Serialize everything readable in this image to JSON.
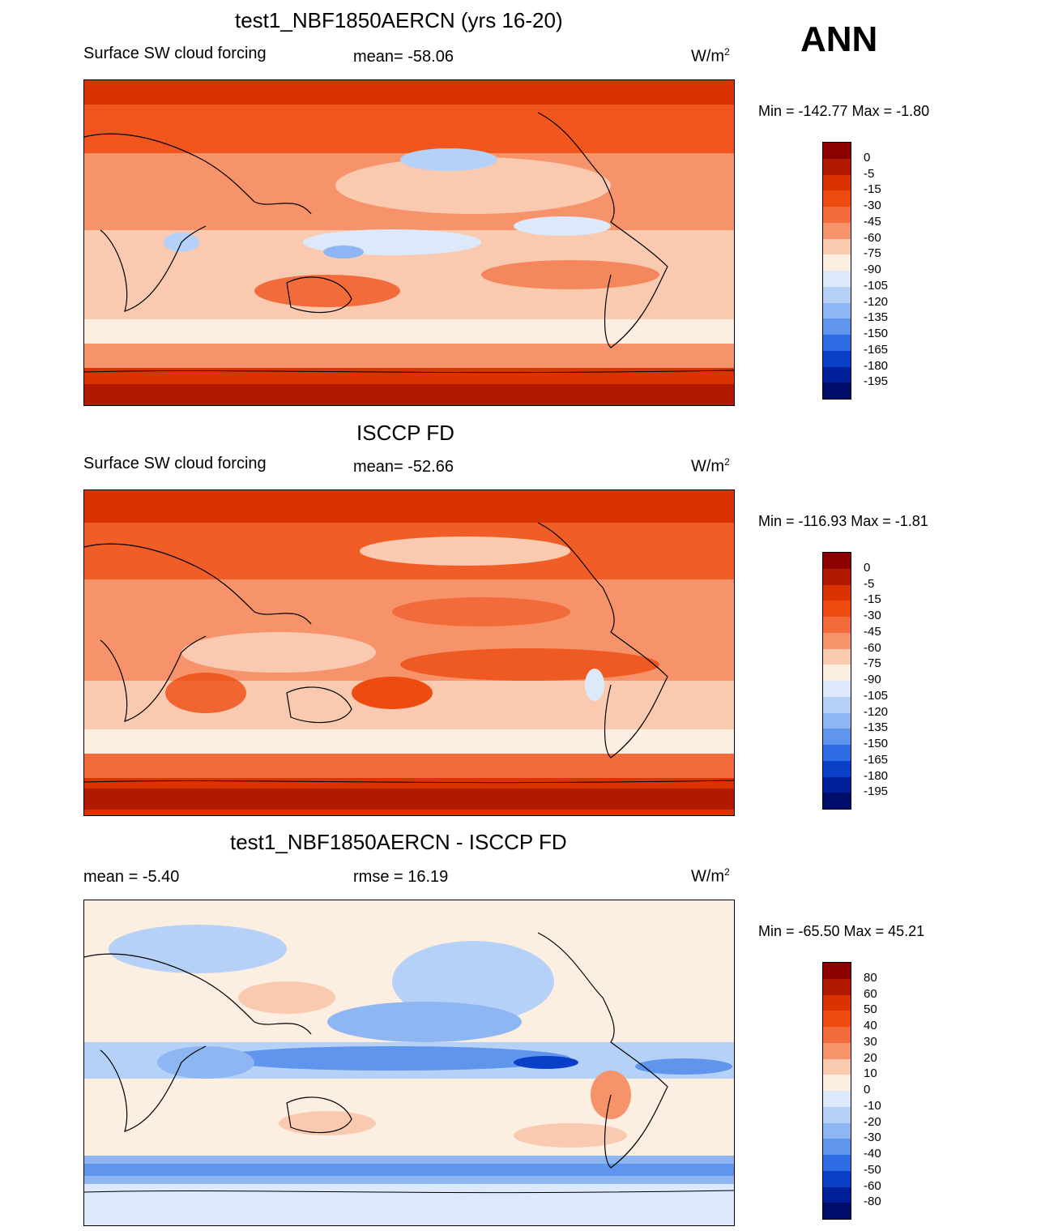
{
  "season": "ANN",
  "panels": [
    {
      "title": "test1_NBF1850AERCN (yrs 16-20)",
      "left_label": "Surface SW cloud forcing",
      "center_label": "mean= -58.06",
      "units_base": "W/m",
      "units_exp": "2",
      "minmax": "Min = -142.77 Max =  -1.80",
      "colorbar": {
        "labels": [
          "0",
          "-5",
          "-15",
          "-30",
          "-45",
          "-60",
          "-75",
          "-90",
          "-105",
          "-120",
          "-135",
          "-150",
          "-165",
          "-180",
          "-195"
        ],
        "colors": [
          "#8b0000",
          "#b21a00",
          "#d93400",
          "#ee4b10",
          "#f26b3a",
          "#f6936b",
          "#facab0",
          "#fdeee2",
          "#dbe9fb",
          "#b6d1f7",
          "#8eb6f2",
          "#5f95ec",
          "#2e6ce4",
          "#0a40c8",
          "#001f99",
          "#000d6b"
        ]
      }
    },
    {
      "title": "ISCCP FD",
      "left_label": "Surface SW cloud forcing",
      "center_label": "mean= -52.66",
      "units_base": "W/m",
      "units_exp": "2",
      "minmax": "Min = -116.93 Max =  -1.81",
      "colorbar": {
        "labels": [
          "0",
          "-5",
          "-15",
          "-30",
          "-45",
          "-60",
          "-75",
          "-90",
          "-105",
          "-120",
          "-135",
          "-150",
          "-165",
          "-180",
          "-195"
        ],
        "colors": [
          "#8b0000",
          "#b21a00",
          "#d93400",
          "#ee4b10",
          "#f26b3a",
          "#f6936b",
          "#facab0",
          "#fdeee2",
          "#dbe9fb",
          "#b6d1f7",
          "#8eb6f2",
          "#5f95ec",
          "#2e6ce4",
          "#0a40c8",
          "#001f99",
          "#000d6b"
        ]
      }
    },
    {
      "title": "test1_NBF1850AERCN - ISCCP FD",
      "left_label": "mean =  -5.40",
      "center_label": "rmse =  16.19",
      "units_base": "W/m",
      "units_exp": "2",
      "minmax": "Min = -65.50 Max =  45.21",
      "colorbar": {
        "labels": [
          "80",
          "60",
          "50",
          "40",
          "30",
          "20",
          "10",
          "0",
          "-10",
          "-20",
          "-30",
          "-40",
          "-50",
          "-60",
          "-80"
        ],
        "colors": [
          "#8b0000",
          "#b21a00",
          "#d93400",
          "#ee4b10",
          "#f26b3a",
          "#f6936b",
          "#facab0",
          "#fdeee2",
          "#dbe9fb",
          "#b6d1f7",
          "#8eb6f2",
          "#5f95ec",
          "#2e6ce4",
          "#0a40c8",
          "#001f99",
          "#000d6b"
        ]
      }
    }
  ]
}
